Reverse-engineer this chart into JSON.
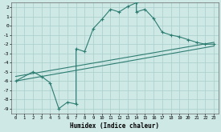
{
  "xlabel": "Humidex (Indice chaleur)",
  "bg_color": "#cde8e5",
  "grid_color": "#aacfcc",
  "line_color": "#2e7d72",
  "xlim": [
    -0.5,
    23.5
  ],
  "ylim": [
    -9.5,
    2.5
  ],
  "xticks": [
    0,
    1,
    2,
    3,
    4,
    5,
    6,
    7,
    8,
    9,
    10,
    11,
    12,
    13,
    14,
    15,
    16,
    17,
    18,
    19,
    20,
    21,
    22,
    23
  ],
  "yticks": [
    -9,
    -8,
    -7,
    -6,
    -5,
    -4,
    -3,
    -2,
    -1,
    0,
    1,
    2
  ],
  "main_x": [
    0,
    2,
    3,
    4,
    5,
    6,
    7,
    7,
    8,
    9,
    10,
    11,
    12,
    13,
    14,
    14,
    15,
    16,
    17,
    18,
    19,
    20,
    21,
    22,
    23
  ],
  "main_y": [
    -6,
    -5,
    -5.5,
    -6.2,
    -9,
    -8.3,
    -8.5,
    -2.5,
    -2.8,
    -0.3,
    0.7,
    1.8,
    1.5,
    2.1,
    2.5,
    1.5,
    1.8,
    0.8,
    -0.7,
    -1.0,
    -1.2,
    -1.5,
    -1.8,
    -2.0,
    -2.0
  ],
  "line2_x": [
    0,
    23
  ],
  "line2_y": [
    -5.5,
    -1.8
  ],
  "line3_x": [
    0,
    23
  ],
  "line3_y": [
    -6.0,
    -2.2
  ]
}
